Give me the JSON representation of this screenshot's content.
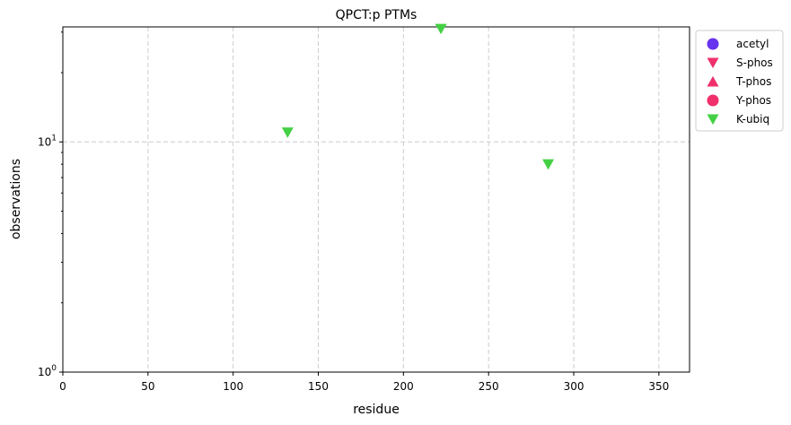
{
  "chart_data": {
    "type": "scatter",
    "title": "QPCT:p PTMs",
    "xlabel": "residue",
    "ylabel": "observations",
    "xlim": [
      0,
      368
    ],
    "ylim": [
      1,
      31.6
    ],
    "yscale": "log",
    "grid": true,
    "legend_position": "outside-top-right",
    "x_ticks": [
      "0",
      "50",
      "100",
      "150",
      "200",
      "250",
      "300",
      "350"
    ],
    "x_tick_values": [
      0,
      50,
      100,
      150,
      200,
      250,
      300,
      350
    ],
    "y_ticks": [
      {
        "value": 1,
        "base": "10",
        "exp": "0"
      },
      {
        "value": 10,
        "base": "10",
        "exp": "1"
      }
    ],
    "series": [
      {
        "name": "acetyl",
        "marker": "circle",
        "color": "#6633ee",
        "points": []
      },
      {
        "name": "S-phos",
        "marker": "triangle-down",
        "color": "#f0306a",
        "points": []
      },
      {
        "name": "T-phos",
        "marker": "triangle-up",
        "color": "#f0306a",
        "points": []
      },
      {
        "name": "Y-phos",
        "marker": "circle",
        "color": "#f0306a",
        "points": []
      },
      {
        "name": "K-ubiq",
        "marker": "triangle-down",
        "color": "#44d044",
        "points": [
          {
            "x": 132,
            "y": 11
          },
          {
            "x": 222,
            "y": 31
          },
          {
            "x": 285,
            "y": 8
          }
        ]
      }
    ]
  }
}
